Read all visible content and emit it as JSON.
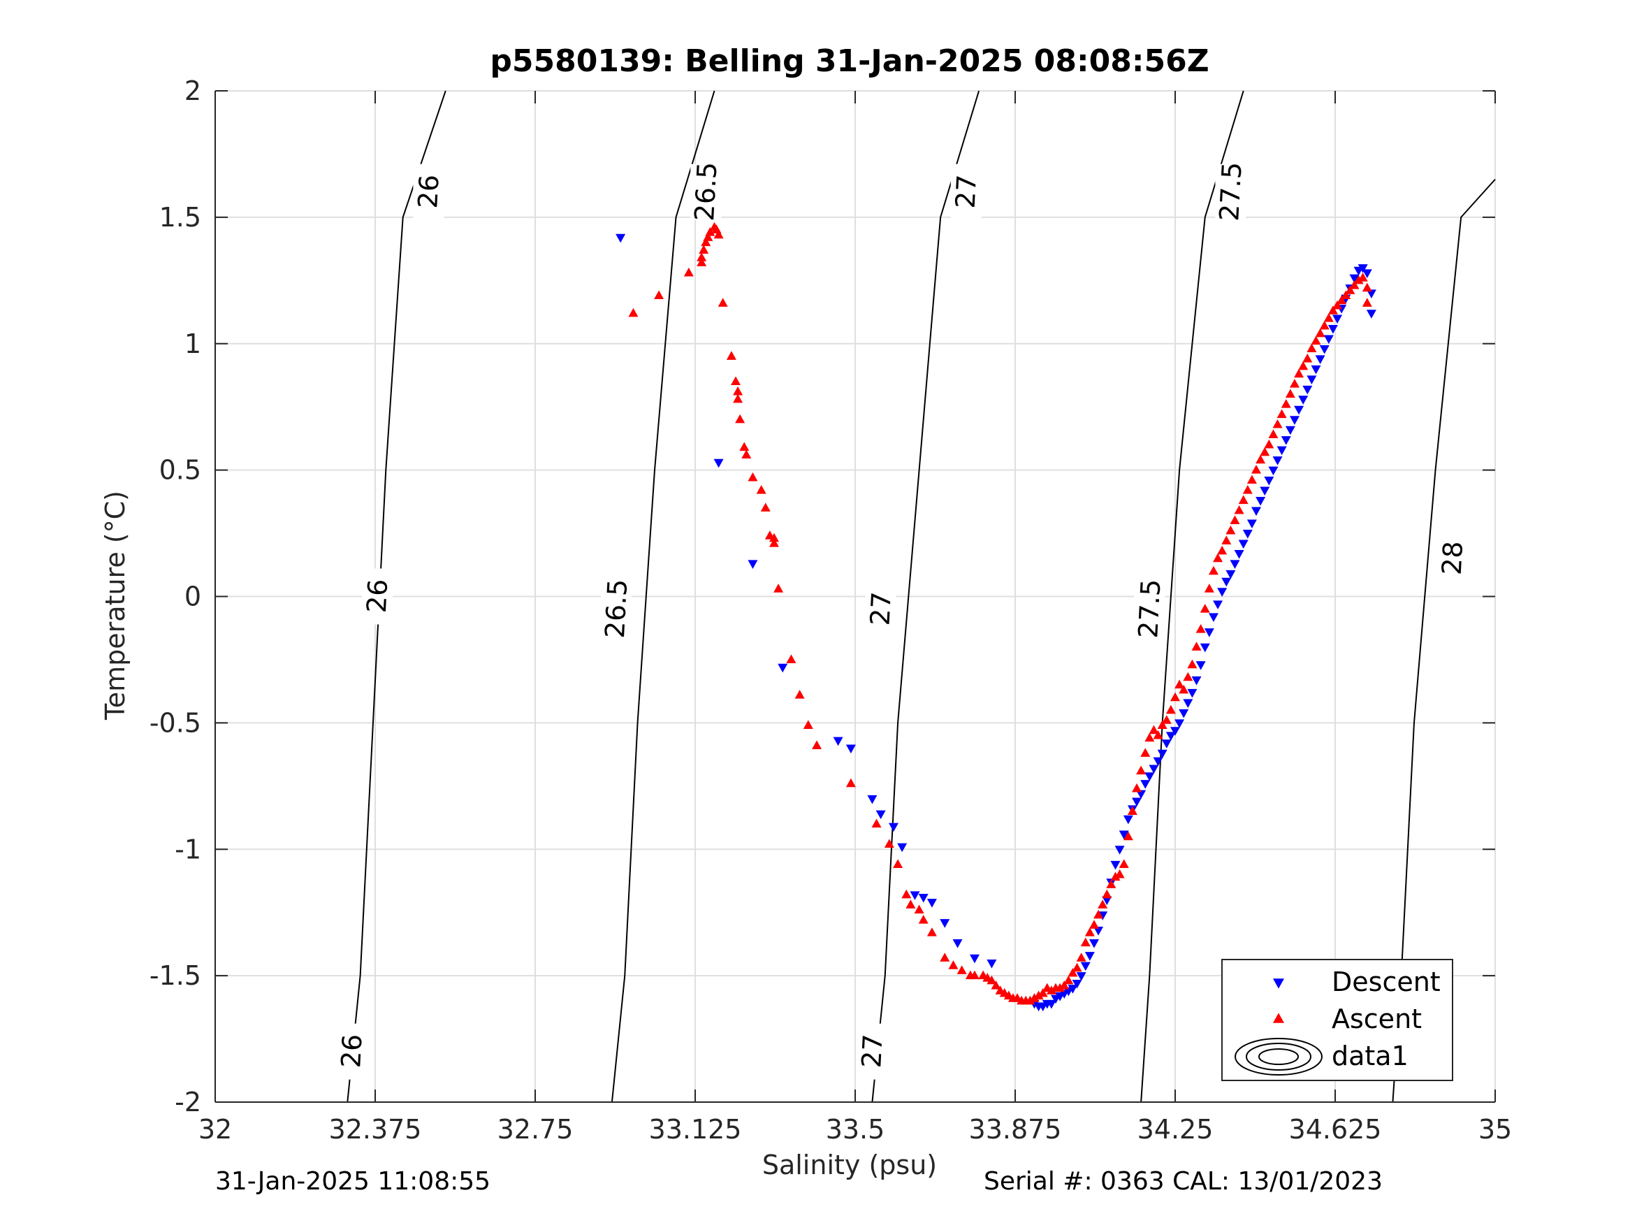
{
  "chart_data": {
    "type": "scatter",
    "title": "p5580139: Belling 31-Jan-2025 08:08:56Z",
    "xlabel": "Salinity (psu)",
    "ylabel": "Temperature (°C)",
    "xlim": [
      32,
      35
    ],
    "ylim": [
      -2,
      2
    ],
    "x_ticks": [
      "32",
      "32.375",
      "32.75",
      "33.125",
      "33.5",
      "33.875",
      "34.25",
      "34.625",
      "35"
    ],
    "y_ticks": [
      "2",
      "1.5",
      "1",
      "0.5",
      "0",
      "-0.5",
      "-1",
      "-1.5",
      "-2"
    ],
    "grid": true,
    "legend_position": "bottom-right",
    "legend": [
      "Descent",
      "Ascent",
      "data1"
    ],
    "colors": {
      "descent": "#0000ff",
      "ascent": "#ff0000",
      "contour": "#000000",
      "grid": "#dfdfdf"
    },
    "series": [
      {
        "name": "Descent",
        "marker": "triangle-down",
        "points": [
          [
            32.95,
            1.42
          ],
          [
            33.18,
            0.53
          ],
          [
            33.26,
            0.13
          ],
          [
            33.33,
            -0.28
          ],
          [
            33.46,
            -0.57
          ],
          [
            33.49,
            -0.6
          ],
          [
            33.54,
            -0.8
          ],
          [
            33.56,
            -0.86
          ],
          [
            33.59,
            -0.91
          ],
          [
            33.61,
            -0.99
          ],
          [
            33.64,
            -1.18
          ],
          [
            33.66,
            -1.19
          ],
          [
            33.68,
            -1.21
          ],
          [
            33.71,
            -1.29
          ],
          [
            33.74,
            -1.37
          ],
          [
            33.78,
            -1.43
          ],
          [
            33.82,
            -1.45
          ],
          [
            33.92,
            -1.61
          ],
          [
            33.93,
            -1.62
          ],
          [
            33.94,
            -1.62
          ],
          [
            33.95,
            -1.61
          ],
          [
            33.96,
            -1.61
          ],
          [
            33.97,
            -1.59
          ],
          [
            33.98,
            -1.58
          ],
          [
            33.99,
            -1.57
          ],
          [
            34.0,
            -1.56
          ],
          [
            34.01,
            -1.55
          ],
          [
            34.02,
            -1.53
          ],
          [
            34.03,
            -1.5
          ],
          [
            34.04,
            -1.46
          ],
          [
            34.05,
            -1.42
          ],
          [
            34.06,
            -1.37
          ],
          [
            34.07,
            -1.32
          ],
          [
            34.08,
            -1.26
          ],
          [
            34.09,
            -1.2
          ],
          [
            34.1,
            -1.13
          ],
          [
            34.11,
            -1.06
          ],
          [
            34.12,
            -1.0
          ],
          [
            34.13,
            -0.94
          ],
          [
            34.14,
            -0.88
          ],
          [
            34.15,
            -0.84
          ],
          [
            34.16,
            -0.81
          ],
          [
            34.17,
            -0.78
          ],
          [
            34.18,
            -0.74
          ],
          [
            34.19,
            -0.71
          ],
          [
            34.2,
            -0.68
          ],
          [
            34.21,
            -0.65
          ],
          [
            34.22,
            -0.62
          ],
          [
            34.23,
            -0.58
          ],
          [
            34.24,
            -0.55
          ],
          [
            34.25,
            -0.53
          ],
          [
            34.26,
            -0.5
          ],
          [
            34.27,
            -0.46
          ],
          [
            34.28,
            -0.42
          ],
          [
            34.29,
            -0.38
          ],
          [
            34.3,
            -0.33
          ],
          [
            34.31,
            -0.27
          ],
          [
            34.32,
            -0.2
          ],
          [
            34.33,
            -0.14
          ],
          [
            34.34,
            -0.08
          ],
          [
            34.35,
            -0.03
          ],
          [
            34.36,
            0.02
          ],
          [
            34.37,
            0.06
          ],
          [
            34.38,
            0.09
          ],
          [
            34.39,
            0.13
          ],
          [
            34.4,
            0.17
          ],
          [
            34.41,
            0.21
          ],
          [
            34.42,
            0.25
          ],
          [
            34.43,
            0.29
          ],
          [
            34.44,
            0.34
          ],
          [
            34.45,
            0.38
          ],
          [
            34.46,
            0.42
          ],
          [
            34.47,
            0.46
          ],
          [
            34.48,
            0.5
          ],
          [
            34.49,
            0.54
          ],
          [
            34.5,
            0.58
          ],
          [
            34.51,
            0.62
          ],
          [
            34.52,
            0.66
          ],
          [
            34.53,
            0.7
          ],
          [
            34.54,
            0.74
          ],
          [
            34.55,
            0.78
          ],
          [
            34.56,
            0.82
          ],
          [
            34.57,
            0.86
          ],
          [
            34.58,
            0.9
          ],
          [
            34.59,
            0.94
          ],
          [
            34.6,
            0.98
          ],
          [
            34.61,
            1.02
          ],
          [
            34.62,
            1.06
          ],
          [
            34.63,
            1.1
          ],
          [
            34.64,
            1.14
          ],
          [
            34.65,
            1.18
          ],
          [
            34.66,
            1.22
          ],
          [
            34.67,
            1.26
          ],
          [
            34.68,
            1.29
          ],
          [
            34.69,
            1.3
          ],
          [
            34.7,
            1.28
          ],
          [
            34.71,
            1.2
          ],
          [
            34.71,
            1.12
          ]
        ]
      },
      {
        "name": "Ascent",
        "marker": "triangle-up",
        "points": [
          [
            32.98,
            1.12
          ],
          [
            33.04,
            1.19
          ],
          [
            33.11,
            1.28
          ],
          [
            33.14,
            1.34
          ],
          [
            33.145,
            1.37
          ],
          [
            33.15,
            1.4
          ],
          [
            33.155,
            1.42
          ],
          [
            33.16,
            1.44
          ],
          [
            33.17,
            1.46
          ],
          [
            33.175,
            1.45
          ],
          [
            33.18,
            1.43
          ],
          [
            33.14,
            1.32
          ],
          [
            33.19,
            1.16
          ],
          [
            33.21,
            0.95
          ],
          [
            33.22,
            0.85
          ],
          [
            33.225,
            0.81
          ],
          [
            33.225,
            0.78
          ],
          [
            33.23,
            0.7
          ],
          [
            33.24,
            0.59
          ],
          [
            33.245,
            0.56
          ],
          [
            33.26,
            0.47
          ],
          [
            33.28,
            0.42
          ],
          [
            33.29,
            0.35
          ],
          [
            33.3,
            0.24
          ],
          [
            33.31,
            0.23
          ],
          [
            33.31,
            0.21
          ],
          [
            33.32,
            0.03
          ],
          [
            33.35,
            -0.25
          ],
          [
            33.37,
            -0.39
          ],
          [
            33.39,
            -0.51
          ],
          [
            33.41,
            -0.59
          ],
          [
            33.49,
            -0.74
          ],
          [
            33.55,
            -0.9
          ],
          [
            33.58,
            -0.98
          ],
          [
            33.6,
            -1.06
          ],
          [
            33.62,
            -1.18
          ],
          [
            33.63,
            -1.22
          ],
          [
            33.65,
            -1.24
          ],
          [
            33.66,
            -1.28
          ],
          [
            33.68,
            -1.33
          ],
          [
            33.71,
            -1.43
          ],
          [
            33.73,
            -1.46
          ],
          [
            33.75,
            -1.48
          ],
          [
            33.77,
            -1.5
          ],
          [
            33.78,
            -1.5
          ],
          [
            33.8,
            -1.5
          ],
          [
            33.81,
            -1.51
          ],
          [
            33.82,
            -1.52
          ],
          [
            33.83,
            -1.54
          ],
          [
            33.84,
            -1.56
          ],
          [
            33.85,
            -1.57
          ],
          [
            33.86,
            -1.58
          ],
          [
            33.87,
            -1.59
          ],
          [
            33.88,
            -1.59
          ],
          [
            33.89,
            -1.6
          ],
          [
            33.9,
            -1.6
          ],
          [
            33.91,
            -1.6
          ],
          [
            33.92,
            -1.59
          ],
          [
            33.93,
            -1.58
          ],
          [
            33.94,
            -1.57
          ],
          [
            33.95,
            -1.55
          ],
          [
            33.96,
            -1.56
          ],
          [
            33.97,
            -1.55
          ],
          [
            33.98,
            -1.55
          ],
          [
            33.99,
            -1.54
          ],
          [
            34.0,
            -1.52
          ],
          [
            34.01,
            -1.49
          ],
          [
            34.02,
            -1.47
          ],
          [
            34.03,
            -1.43
          ],
          [
            34.04,
            -1.37
          ],
          [
            34.05,
            -1.33
          ],
          [
            34.06,
            -1.3
          ],
          [
            34.07,
            -1.26
          ],
          [
            34.08,
            -1.22
          ],
          [
            34.09,
            -1.18
          ],
          [
            34.1,
            -1.14
          ],
          [
            34.11,
            -1.11
          ],
          [
            34.12,
            -1.1
          ],
          [
            34.13,
            -1.06
          ],
          [
            34.14,
            -0.95
          ],
          [
            34.15,
            -0.85
          ],
          [
            34.16,
            -0.76
          ],
          [
            34.17,
            -0.69
          ],
          [
            34.18,
            -0.62
          ],
          [
            34.19,
            -0.56
          ],
          [
            34.2,
            -0.53
          ],
          [
            34.21,
            -0.55
          ],
          [
            34.22,
            -0.51
          ],
          [
            34.23,
            -0.49
          ],
          [
            34.24,
            -0.45
          ],
          [
            34.25,
            -0.4
          ],
          [
            34.26,
            -0.35
          ],
          [
            34.27,
            -0.37
          ],
          [
            34.28,
            -0.32
          ],
          [
            34.29,
            -0.27
          ],
          [
            34.3,
            -0.2
          ],
          [
            34.31,
            -0.13
          ],
          [
            34.32,
            -0.05
          ],
          [
            34.33,
            0.03
          ],
          [
            34.34,
            0.1
          ],
          [
            34.35,
            0.15
          ],
          [
            34.36,
            0.18
          ],
          [
            34.37,
            0.22
          ],
          [
            34.38,
            0.26
          ],
          [
            34.39,
            0.3
          ],
          [
            34.4,
            0.34
          ],
          [
            34.41,
            0.38
          ],
          [
            34.42,
            0.42
          ],
          [
            34.43,
            0.46
          ],
          [
            34.44,
            0.5
          ],
          [
            34.45,
            0.54
          ],
          [
            34.46,
            0.57
          ],
          [
            34.47,
            0.6
          ],
          [
            34.48,
            0.64
          ],
          [
            34.49,
            0.68
          ],
          [
            34.5,
            0.72
          ],
          [
            34.51,
            0.76
          ],
          [
            34.52,
            0.8
          ],
          [
            34.53,
            0.84
          ],
          [
            34.54,
            0.88
          ],
          [
            34.55,
            0.91
          ],
          [
            34.56,
            0.94
          ],
          [
            34.57,
            0.98
          ],
          [
            34.58,
            1.01
          ],
          [
            34.59,
            1.04
          ],
          [
            34.6,
            1.07
          ],
          [
            34.61,
            1.1
          ],
          [
            34.62,
            1.13
          ],
          [
            34.63,
            1.15
          ],
          [
            34.64,
            1.17
          ],
          [
            34.65,
            1.19
          ],
          [
            34.66,
            1.21
          ],
          [
            34.67,
            1.23
          ],
          [
            34.68,
            1.25
          ],
          [
            34.69,
            1.26
          ],
          [
            34.7,
            1.22
          ],
          [
            34.7,
            1.16
          ]
        ]
      }
    ],
    "contours": [
      {
        "label": "26",
        "path": [
          [
            32.31,
            -2.0
          ],
          [
            32.34,
            -1.5
          ],
          [
            32.37,
            -0.5
          ],
          [
            32.4,
            0.5
          ],
          [
            32.44,
            1.5
          ],
          [
            32.54,
            2.0
          ]
        ],
        "labels_at": [
          [
            32.32,
            -1.8
          ],
          [
            32.38,
            0.0
          ],
          [
            32.5,
            1.6
          ]
        ]
      },
      {
        "label": "26.5",
        "path": [
          [
            32.93,
            -2.0
          ],
          [
            32.96,
            -1.5
          ],
          [
            32.99,
            -0.5
          ],
          [
            33.03,
            0.5
          ],
          [
            33.08,
            1.5
          ],
          [
            33.17,
            2.0
          ]
        ],
        "labels_at": [
          [
            32.94,
            -0.05
          ],
          [
            33.15,
            1.6
          ]
        ]
      },
      {
        "label": "27",
        "path": [
          [
            33.54,
            -2.0
          ],
          [
            33.57,
            -1.5
          ],
          [
            33.6,
            -0.5
          ],
          [
            33.65,
            0.5
          ],
          [
            33.7,
            1.5
          ],
          [
            33.79,
            2.0
          ]
        ],
        "labels_at": [
          [
            33.54,
            -1.8
          ],
          [
            33.56,
            -0.05
          ],
          [
            33.76,
            1.6
          ]
        ]
      },
      {
        "label": "27.5",
        "path": [
          [
            34.17,
            -2.0
          ],
          [
            34.19,
            -1.5
          ],
          [
            34.22,
            -0.5
          ],
          [
            34.26,
            0.5
          ],
          [
            34.32,
            1.5
          ],
          [
            34.41,
            2.0
          ]
        ],
        "labels_at": [
          [
            34.19,
            -0.05
          ],
          [
            34.38,
            1.6
          ]
        ]
      },
      {
        "label": "28",
        "path": [
          [
            34.76,
            -2.0
          ],
          [
            34.78,
            -1.5
          ],
          [
            34.81,
            -0.5
          ],
          [
            34.86,
            0.5
          ],
          [
            34.92,
            1.5
          ],
          [
            35.0,
            1.65
          ]
        ],
        "labels_at": [
          [
            34.79,
            -1.55
          ],
          [
            34.9,
            0.15
          ]
        ]
      }
    ]
  },
  "footer": {
    "timestamp": "31-Jan-2025 11:08:55",
    "serial": "Serial #: 0363  CAL: 13/01/2023"
  }
}
